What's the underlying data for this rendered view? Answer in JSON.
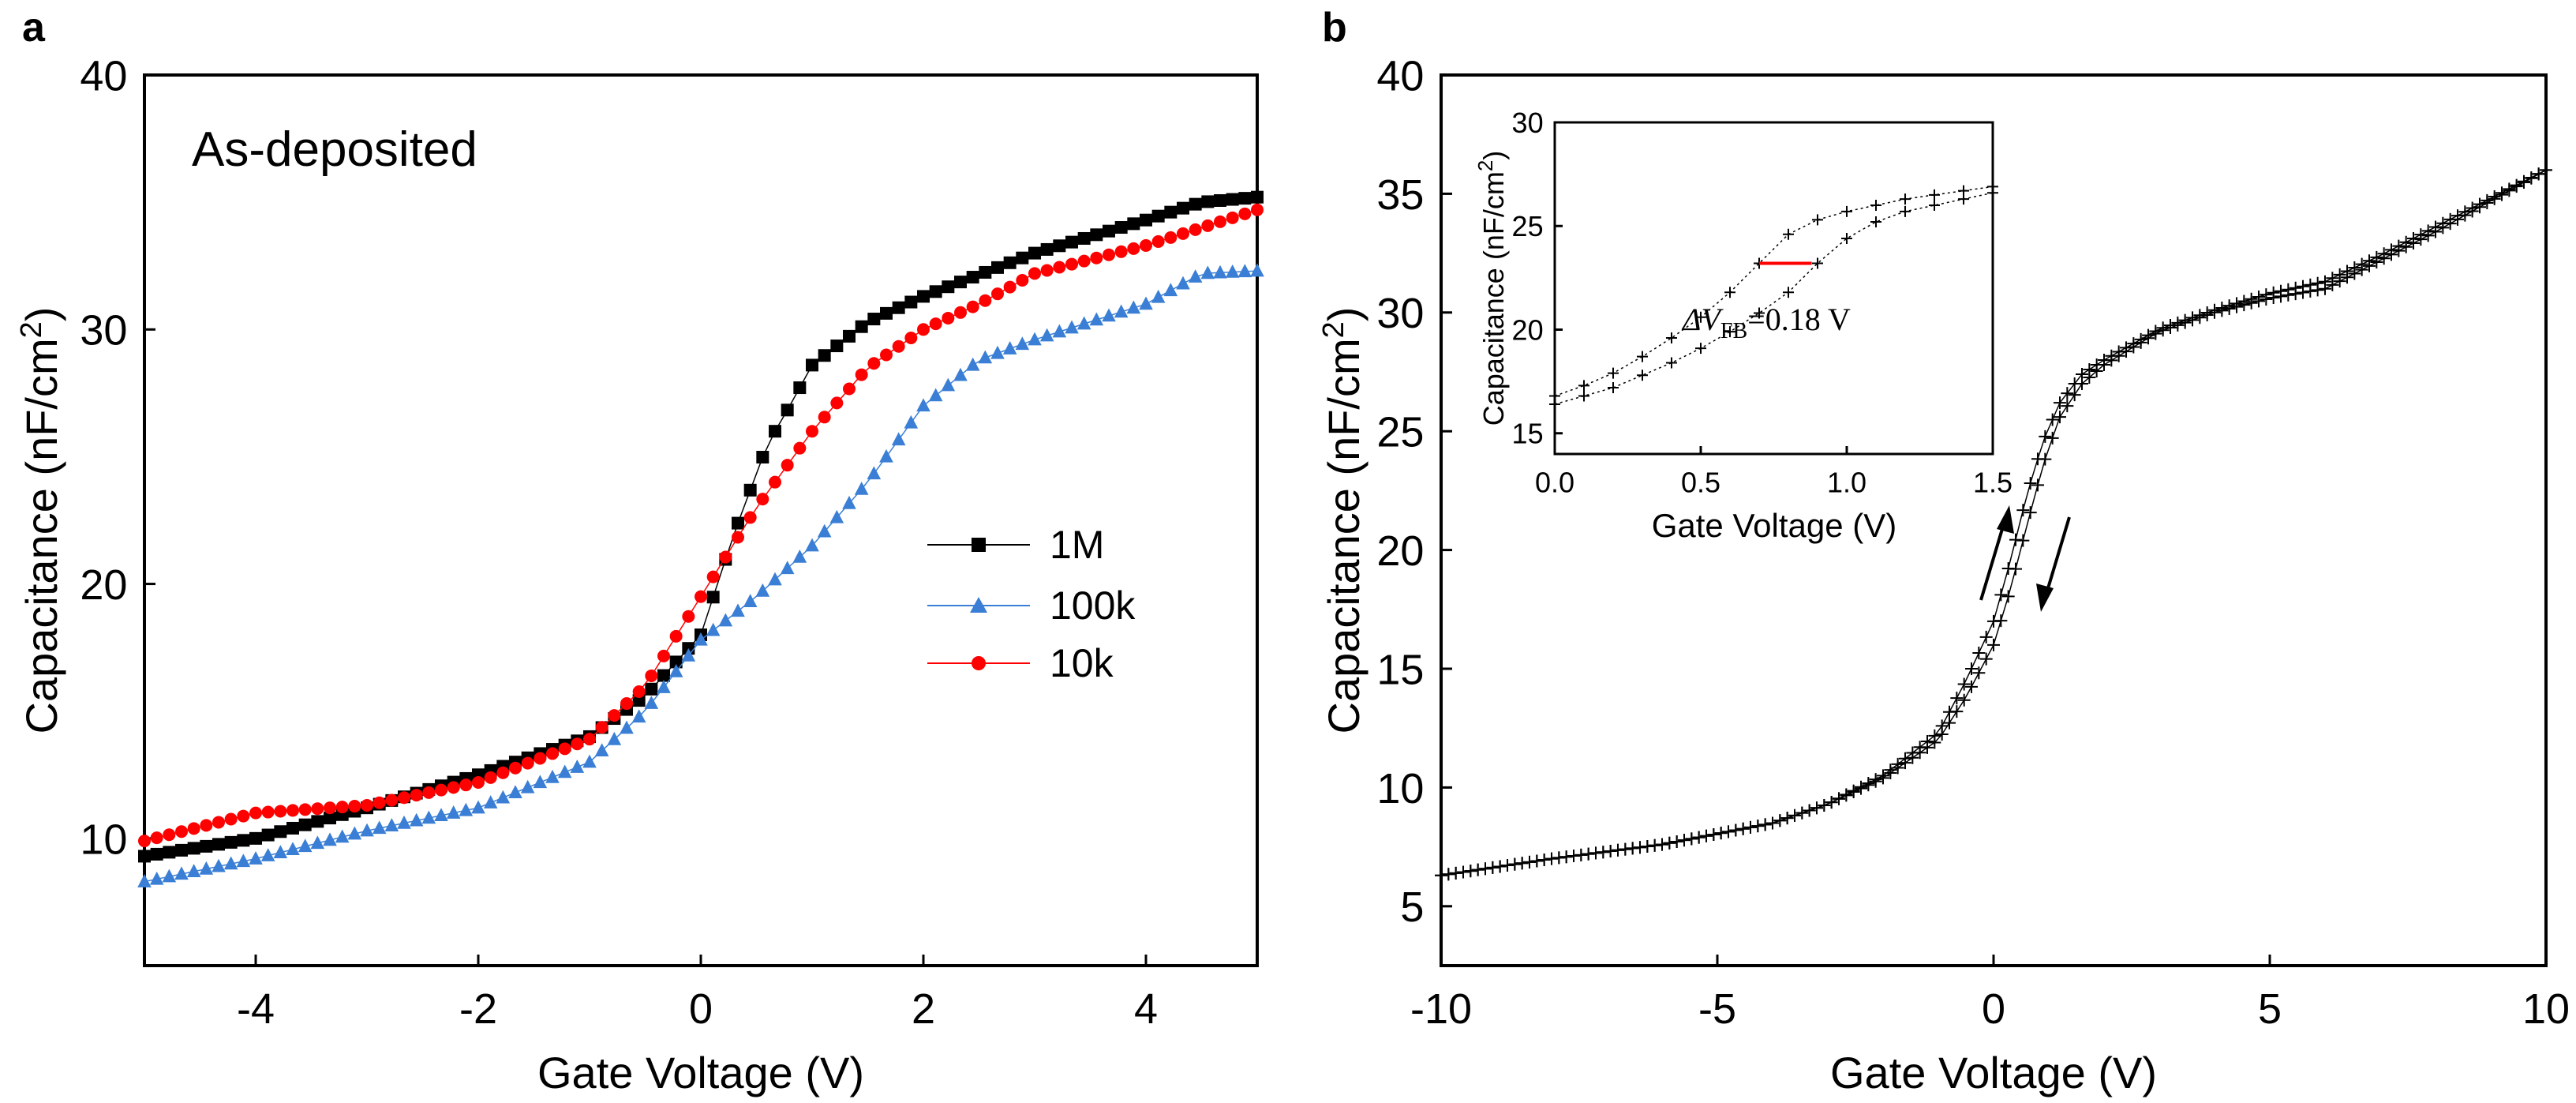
{
  "chart_data": [
    {
      "panel_label": "a",
      "type": "scatter",
      "annotation": "As-deposited",
      "xlabel": "Gate Voltage (V)",
      "ylabel": "Capacitance (nF/cm",
      "ylabel_sup": "2",
      "ylabel_end": ")",
      "xlim": [
        -5,
        5
      ],
      "ylim": [
        5,
        40
      ],
      "xticks": [
        -4,
        -2,
        0,
        2,
        4
      ],
      "yticks": [
        10,
        20,
        30,
        40
      ],
      "legend_position": "right-center",
      "series": [
        {
          "name": "1M",
          "color": "#000000",
          "marker": "square",
          "x": [
            -5,
            -4,
            -3,
            -2,
            -1,
            -0.5,
            0,
            0.3,
            0.6,
            0.8,
            1,
            1.5,
            2,
            3,
            4,
            4.5,
            5
          ],
          "y": [
            9.3,
            10,
            11.2,
            12.5,
            14,
            15.6,
            18,
            22,
            25.5,
            27,
            28.6,
            30.3,
            31.3,
            33,
            34.3,
            35,
            35.2
          ]
        },
        {
          "name": "100k",
          "color": "#3a7fd5",
          "marker": "triangle",
          "x": [
            -5,
            -4,
            -3,
            -2,
            -1,
            -0.5,
            0,
            0.5,
            1,
            1.5,
            2,
            2.5,
            3,
            4,
            4.5,
            5
          ],
          "y": [
            8.3,
            9.2,
            10.3,
            11.2,
            13,
            15,
            17.8,
            19.5,
            21.5,
            24,
            27,
            28.8,
            29.6,
            31,
            32.2,
            32.3
          ]
        },
        {
          "name": "10k",
          "color": "#ff0000",
          "marker": "circle",
          "x": [
            -5,
            -4,
            -3,
            -2,
            -1,
            -0.5,
            0,
            0.5,
            1,
            1.5,
            2,
            2.5,
            3,
            4,
            4.5,
            5
          ],
          "y": [
            9.9,
            11,
            11.3,
            12.2,
            13.9,
            16,
            19.5,
            23,
            26,
            28.5,
            30,
            31,
            32.2,
            33.3,
            34,
            34.7
          ]
        }
      ]
    },
    {
      "panel_label": "b",
      "type": "scatter",
      "xlabel": "Gate Voltage (V)",
      "ylabel": "Capacitance (nF/cm",
      "ylabel_sup": "2",
      "ylabel_end": ")",
      "xlim": [
        -10,
        10
      ],
      "ylim": [
        2.5,
        40
      ],
      "xticks": [
        -10,
        -5,
        0,
        5,
        10
      ],
      "yticks": [
        5,
        10,
        15,
        20,
        25,
        30,
        35,
        40
      ],
      "series": [
        {
          "name": "forward sweep",
          "color": "#000000",
          "marker": "plus",
          "x": [
            -10,
            -8,
            -6,
            -4,
            -3,
            -2,
            -1,
            -0.5,
            0,
            0.3,
            0.6,
            0.9,
            1.2,
            1.6,
            2,
            3,
            4,
            5,
            6,
            7,
            8,
            9,
            10
          ],
          "y": [
            6.3,
            7,
            7.6,
            8.5,
            9.3,
            10.5,
            12.3,
            14.5,
            17,
            19.5,
            22.3,
            24.6,
            26.2,
            27.4,
            28,
            29.3,
            30.1,
            30.8,
            31.3,
            32.4,
            33.6,
            34.8,
            36
          ]
        },
        {
          "name": "reverse sweep",
          "color": "#000000",
          "marker": "plus",
          "x": [
            -10,
            -8,
            -6,
            -4,
            -3,
            -2,
            -1,
            -0.5,
            0,
            0.3,
            0.6,
            0.9,
            1.2,
            1.6,
            2,
            3,
            4,
            5,
            6,
            7,
            8,
            9,
            10
          ],
          "y": [
            6.3,
            7,
            7.6,
            8.5,
            9.3,
            10.4,
            12,
            13.8,
            16,
            18.3,
            21,
            23.6,
            25.6,
            27,
            27.8,
            29.2,
            30,
            30.6,
            31,
            32.2,
            33.4,
            34.7,
            36
          ]
        }
      ],
      "inset": {
        "xlabel": "Gate Voltage (V)",
        "ylabel": "Capacitance (nF/cm",
        "ylabel_sup": "2",
        "ylabel_end": ")",
        "xlim": [
          0,
          1.5
        ],
        "ylim": [
          14,
          30
        ],
        "xticks": [
          "0.0",
          "0.5",
          "1.0",
          "1.5"
        ],
        "yticks": [
          15,
          20,
          25,
          30
        ],
        "annotation_prefix": "ΔV",
        "annotation_sub": "FB",
        "annotation_suffix": "=0.18 V",
        "flatband_shift_V": 0.18,
        "marker_line": {
          "x_start": 0.7,
          "x_end": 0.88,
          "y": 23.2,
          "color": "#ff0000"
        },
        "series": [
          {
            "name": "forward",
            "color": "#000000",
            "marker": "plus",
            "x": [
              0,
              0.1,
              0.2,
              0.3,
              0.4,
              0.5,
              0.6,
              0.7,
              0.8,
              0.9,
              1.0,
              1.1,
              1.2,
              1.3,
              1.4,
              1.5
            ],
            "y": [
              16.8,
              17.3,
              17.9,
              18.7,
              19.6,
              20.6,
              21.8,
              23.2,
              24.6,
              25.3,
              25.7,
              26.0,
              26.3,
              26.5,
              26.7,
              26.9
            ]
          },
          {
            "name": "reverse",
            "color": "#000000",
            "marker": "plus",
            "x": [
              0,
              0.1,
              0.2,
              0.3,
              0.4,
              0.5,
              0.6,
              0.7,
              0.8,
              0.9,
              1.0,
              1.1,
              1.2,
              1.3,
              1.4,
              1.5
            ],
            "y": [
              16.4,
              16.8,
              17.2,
              17.8,
              18.4,
              19.1,
              19.9,
              20.8,
              21.8,
              23.2,
              24.4,
              25.2,
              25.7,
              26.0,
              26.3,
              26.6
            ]
          }
        ]
      }
    }
  ]
}
